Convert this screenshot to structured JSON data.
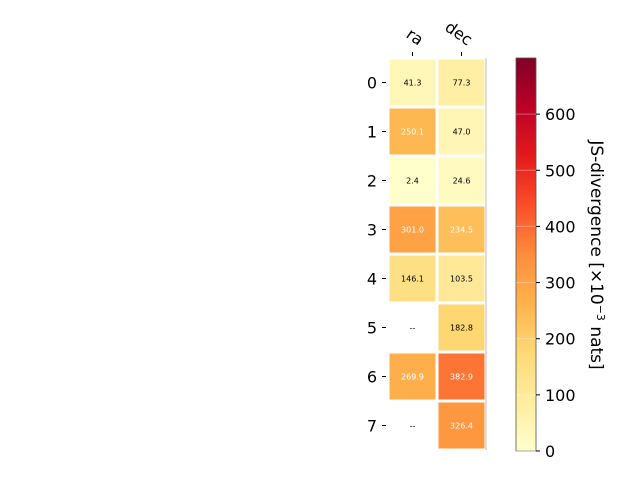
{
  "chart_data": {
    "type": "heatmap",
    "columns": [
      "ra",
      "dec"
    ],
    "rows": [
      "0",
      "1",
      "2",
      "3",
      "4",
      "5",
      "6",
      "7"
    ],
    "values": [
      [
        41.3,
        77.3
      ],
      [
        250.1,
        47.0
      ],
      [
        2.4,
        24.6
      ],
      [
        301.0,
        234.5
      ],
      [
        146.1,
        103.5
      ],
      [
        null,
        182.8
      ],
      [
        269.9,
        382.9
      ],
      [
        null,
        326.4
      ]
    ],
    "cell_labels": [
      [
        "41.3",
        "77.3"
      ],
      [
        "250.1",
        "47.0"
      ],
      [
        "2.4",
        "24.6"
      ],
      [
        "301.0",
        "234.5"
      ],
      [
        "146.1",
        "103.5"
      ],
      [
        "--",
        "182.8"
      ],
      [
        "269.9",
        "382.9"
      ],
      [
        "--",
        "326.4"
      ]
    ],
    "colorbar": {
      "label_prefix": "JS-divergence [×10",
      "label_exponent": "−3",
      "label_suffix": " nats]",
      "ticks": [
        0,
        100,
        200,
        300,
        400,
        500,
        600
      ],
      "range": [
        0,
        700
      ],
      "colormap": "YlOrRd"
    },
    "grid": false
  }
}
